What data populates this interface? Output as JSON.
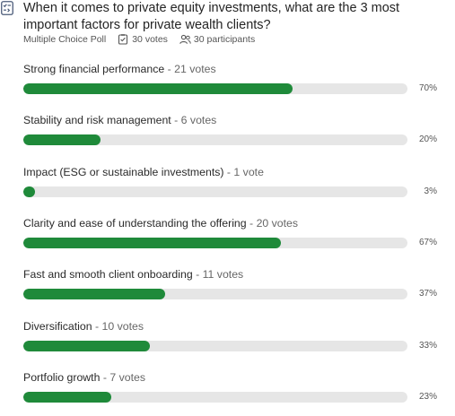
{
  "poll": {
    "question": "When it comes to private equity investments, what are the 3 most important factors for private wealth clients?",
    "type_label": "Multiple Choice Poll",
    "votes_label": "30 votes",
    "participants_label": "30 participants",
    "icons": {
      "poll": "poll-icon",
      "votes": "ballot-check-icon",
      "participants": "participants-icon"
    },
    "accent_color": "#1f8a3a",
    "track_color": "#e6e6e6",
    "options": [
      {
        "label": "Strong financial performance",
        "votes_label": "21 votes",
        "percent_label": "70%",
        "fraction": 0.7
      },
      {
        "label": "Stability and risk management",
        "votes_label": "6 votes",
        "percent_label": "20%",
        "fraction": 0.2
      },
      {
        "label": "Impact (ESG or sustainable investments)",
        "votes_label": "1 vote",
        "percent_label": "3%",
        "fraction": 0.03
      },
      {
        "label": "Clarity and ease of understanding the offering",
        "votes_label": "20 votes",
        "percent_label": "67%",
        "fraction": 0.67
      },
      {
        "label": "Fast and smooth client onboarding",
        "votes_label": "11 votes",
        "percent_label": "37%",
        "fraction": 0.37
      },
      {
        "label": "Diversification",
        "votes_label": "10 votes",
        "percent_label": "33%",
        "fraction": 0.33
      },
      {
        "label": "Portfolio growth",
        "votes_label": "7 votes",
        "percent_label": "23%",
        "fraction": 0.23
      }
    ]
  }
}
